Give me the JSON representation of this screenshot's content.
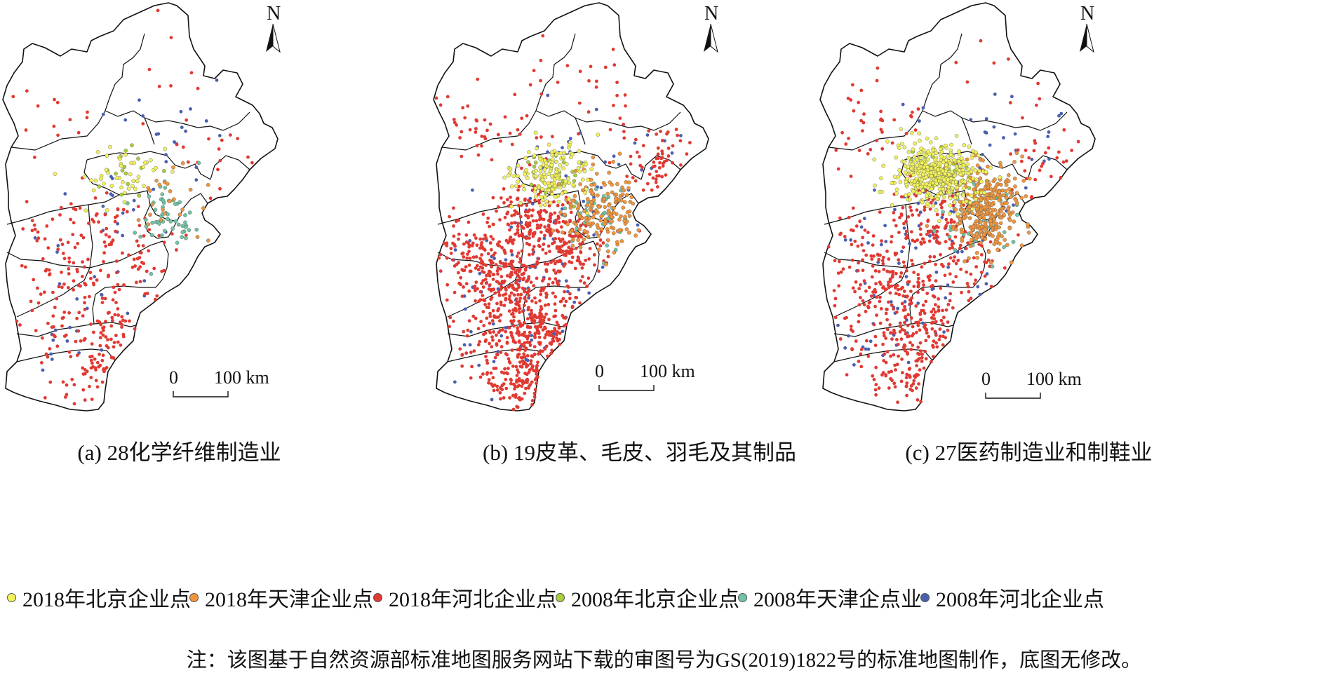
{
  "panels": [
    {
      "caption": "(a) 28化学纤维制造业",
      "north_label": "N",
      "scale_zero": "0",
      "scale_label": "100 km",
      "seed": 11,
      "counts": {
        "bj2018": 45,
        "tj2018": 25,
        "hb2018": 320,
        "bj2008": 15,
        "tj2008": 55,
        "hb2008": 60
      }
    },
    {
      "caption": "(b) 19皮革、毛皮、羽毛及其制品",
      "north_label": "N",
      "scale_zero": "0",
      "scale_label": "100 km",
      "seed": 29,
      "counts": {
        "bj2018": 150,
        "tj2018": 170,
        "hb2018": 1100,
        "bj2008": 25,
        "tj2008": 40,
        "hb2008": 120
      }
    },
    {
      "caption": "(c) 27医药制造业和制鞋业",
      "north_label": "N",
      "scale_zero": "0",
      "scale_label": "100 km",
      "seed": 47,
      "counts": {
        "bj2018": 420,
        "tj2018": 320,
        "hb2018": 620,
        "bj2008": 40,
        "tj2008": 60,
        "hb2008": 110
      }
    }
  ],
  "legend": [
    {
      "key": "bj2018",
      "label": "2018年北京企业点",
      "color": "#f2f25a"
    },
    {
      "key": "tj2018",
      "label": "2018年天津企业点",
      "color": "#f0963c"
    },
    {
      "key": "hb2018",
      "label": "2018年河北企业点",
      "color": "#e03a32"
    },
    {
      "key": "bj2008",
      "label": "2008年北京企业点",
      "color": "#a8cf3c"
    },
    {
      "key": "tj2008",
      "label": "2008年天津企点业",
      "color": "#6fc4a3"
    },
    {
      "key": "hb2008",
      "label": "2008年河北企业点",
      "color": "#4a5fb0"
    }
  ],
  "note": "注：该图基于自然资源部标准地图服务网站下载的审图号为GS(2019)1822号的标准地图制作，底图无修改。"
}
